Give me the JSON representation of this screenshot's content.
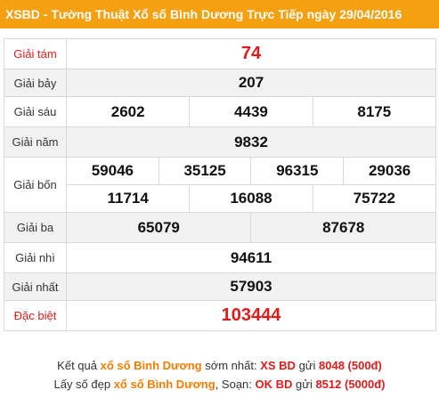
{
  "header": {
    "title": "XSBD - Tường Thuật Xổ số Bình Dương Trực Tiếp ngày 29/04/2016"
  },
  "results": {
    "tam": {
      "label": "Giải tám",
      "values": [
        "74"
      ]
    },
    "bay": {
      "label": "Giải bảy",
      "values": [
        "207"
      ]
    },
    "sau": {
      "label": "Giải sáu",
      "values": [
        "2602",
        "4439",
        "8175"
      ]
    },
    "nam": {
      "label": "Giải năm",
      "values": [
        "9832"
      ]
    },
    "bon": {
      "label": "Giải bốn",
      "values": [
        "59046",
        "35125",
        "96315",
        "29036",
        "11714",
        "16088",
        "75722"
      ]
    },
    "ba": {
      "label": "Giải ba",
      "values": [
        "65079",
        "87678"
      ]
    },
    "nhi": {
      "label": "Giải nhì",
      "values": [
        "94611"
      ]
    },
    "nhat": {
      "label": "Giải nhất",
      "values": [
        "57903"
      ]
    },
    "db": {
      "label": "Đặc biệt",
      "values": [
        "103444"
      ]
    }
  },
  "footer": {
    "line1": {
      "p1": "Kết quả ",
      "link": "xổ số Bình Dương",
      "p2": " sớm nhất: ",
      "code": "XS BD",
      "p3": " gửi ",
      "number": "8048",
      "price": " (500đ)"
    },
    "line2": {
      "p1": "Lấy số đẹp ",
      "link": "xổ số Bình Dương",
      "p2": ", Soạn: ",
      "code": "OK BD",
      "p3": " gửi ",
      "number": "8512",
      "price": " (5000đ)"
    }
  },
  "colors": {
    "header_bg": "#f5a010",
    "special_red": "#e01b1b",
    "link_orange": "#f57c00"
  }
}
